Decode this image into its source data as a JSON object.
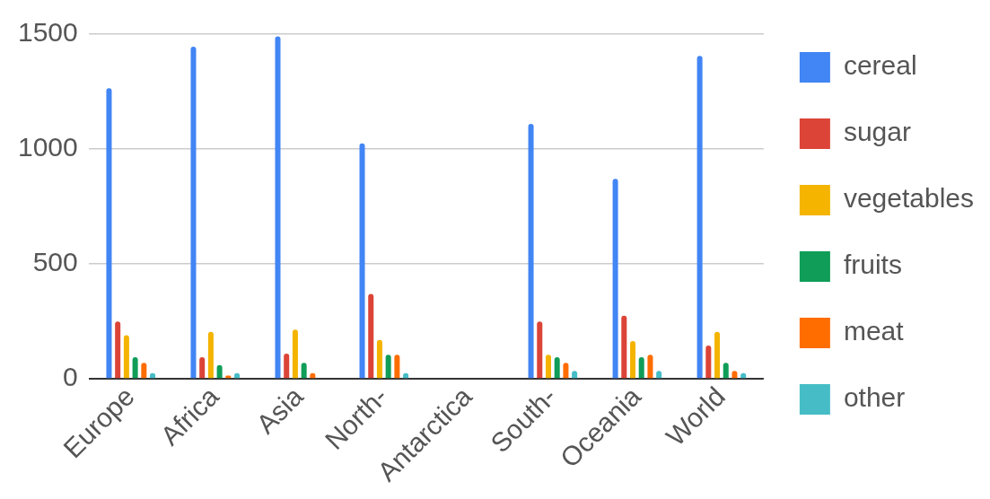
{
  "chart_data": {
    "type": "bar",
    "categories": [
      "Europe",
      "Africa",
      "Asia",
      "North-",
      "Antarctica",
      "South-",
      "Oceania",
      "World"
    ],
    "series": [
      {
        "name": "cereal",
        "color": "#4285f4",
        "values": [
          1265,
          1445,
          1490,
          1025,
          null,
          1110,
          870,
          1405
        ]
      },
      {
        "name": "sugar",
        "color": "#db4437",
        "values": [
          250,
          95,
          110,
          370,
          null,
          250,
          275,
          145
        ]
      },
      {
        "name": "vegetables",
        "color": "#f4b400",
        "values": [
          190,
          205,
          215,
          170,
          null,
          105,
          165,
          205
        ]
      },
      {
        "name": "fruits",
        "color": "#0f9d58",
        "values": [
          95,
          60,
          70,
          105,
          null,
          95,
          95,
          70
        ]
      },
      {
        "name": "meat",
        "color": "#ff6d00",
        "values": [
          70,
          15,
          25,
          105,
          null,
          70,
          105,
          35
        ]
      },
      {
        "name": "other",
        "color": "#46bdc6",
        "values": [
          25,
          25,
          null,
          25,
          null,
          35,
          35,
          25
        ]
      }
    ],
    "ylim": [
      0,
      1500
    ],
    "yticks": [
      0,
      500,
      1000,
      1500
    ],
    "grid": "y",
    "legend": "right"
  }
}
